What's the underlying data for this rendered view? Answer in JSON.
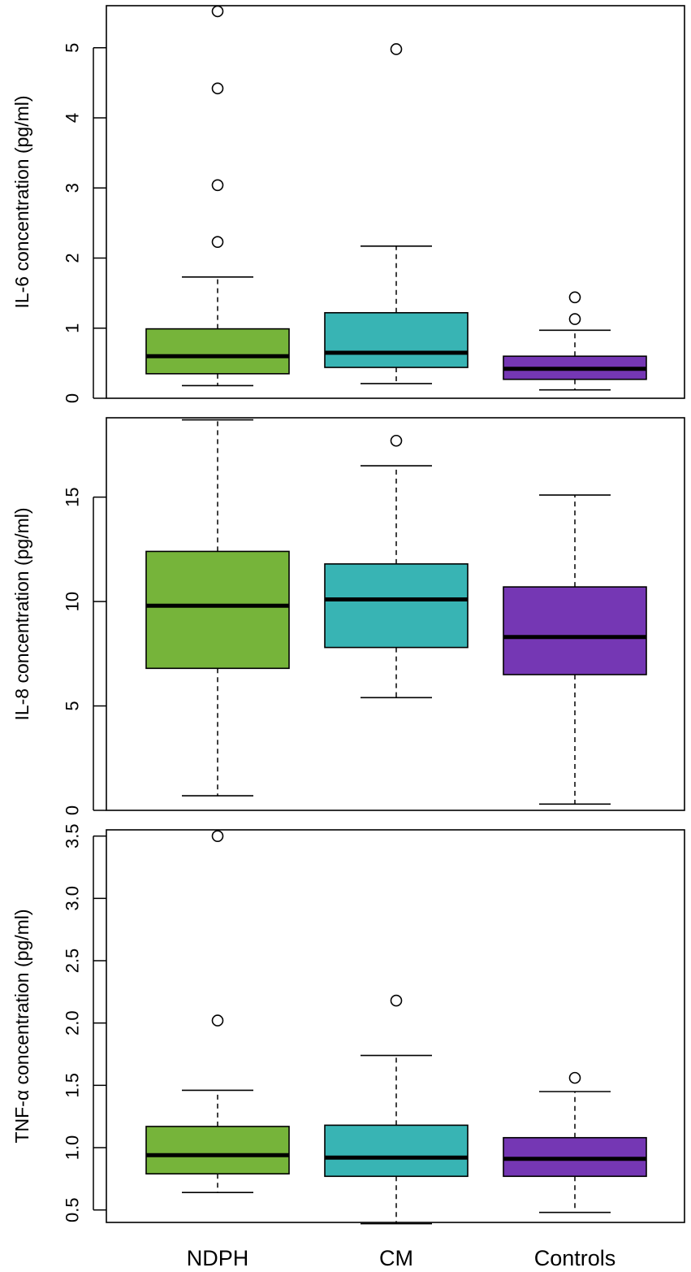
{
  "chart_data": [
    {
      "type": "boxplot",
      "ylabel": "IL-6 concentration (pg/ml)",
      "ylim": [
        0,
        5.6
      ],
      "yticks": [
        0,
        1,
        2,
        3,
        4,
        5
      ],
      "ytick_labels": [
        "0",
        "1",
        "2",
        "3",
        "4",
        "5"
      ],
      "categories": [
        "NDPH",
        "CM",
        "Controls"
      ],
      "boxes": [
        {
          "name": "NDPH",
          "color": "#76b43a",
          "whisker_low": 0.18,
          "q1": 0.35,
          "median": 0.6,
          "q3": 0.99,
          "whisker_high": 1.73,
          "outliers": [
            2.23,
            3.04,
            4.42,
            5.52
          ]
        },
        {
          "name": "CM",
          "color": "#38b4b4",
          "whisker_low": 0.21,
          "q1": 0.44,
          "median": 0.65,
          "q3": 1.22,
          "whisker_high": 2.17,
          "outliers": [
            4.98
          ]
        },
        {
          "name": "Controls",
          "color": "#7537b4",
          "whisker_low": 0.12,
          "q1": 0.27,
          "median": 0.42,
          "q3": 0.6,
          "whisker_high": 0.97,
          "outliers": [
            1.13,
            1.44
          ]
        }
      ]
    },
    {
      "type": "boxplot",
      "ylabel": "IL-8 concentration (pg/ml)",
      "ylim": [
        0,
        18.8
      ],
      "yticks": [
        0,
        5,
        10,
        15
      ],
      "ytick_labels": [
        "0",
        "5",
        "10",
        "15"
      ],
      "categories": [
        "NDPH",
        "CM",
        "Controls"
      ],
      "boxes": [
        {
          "name": "NDPH",
          "color": "#76b43a",
          "whisker_low": 0.7,
          "q1": 6.8,
          "median": 9.8,
          "q3": 12.4,
          "whisker_high": 18.7,
          "outliers": []
        },
        {
          "name": "CM",
          "color": "#38b4b4",
          "whisker_low": 5.4,
          "q1": 7.8,
          "median": 10.1,
          "q3": 11.8,
          "whisker_high": 16.5,
          "outliers": [
            17.7
          ]
        },
        {
          "name": "Controls",
          "color": "#7537b4",
          "whisker_low": 0.3,
          "q1": 6.5,
          "median": 8.3,
          "q3": 10.7,
          "whisker_high": 15.1,
          "outliers": []
        }
      ]
    },
    {
      "type": "boxplot",
      "ylabel": "TNF-α concentration (pg/ml)",
      "ylim": [
        0.4,
        3.55
      ],
      "yticks": [
        0.5,
        1.0,
        1.5,
        2.0,
        2.5,
        3.0,
        3.5
      ],
      "ytick_labels": [
        "0.5",
        "1.0",
        "1.5",
        "2.0",
        "2.5",
        "3.0",
        "3.5"
      ],
      "categories": [
        "NDPH",
        "CM",
        "Controls"
      ],
      "boxes": [
        {
          "name": "NDPH",
          "color": "#76b43a",
          "whisker_low": 0.64,
          "q1": 0.79,
          "median": 0.94,
          "q3": 1.17,
          "whisker_high": 1.46,
          "outliers": [
            2.02,
            3.5
          ]
        },
        {
          "name": "CM",
          "color": "#38b4b4",
          "whisker_low": 0.39,
          "q1": 0.77,
          "median": 0.92,
          "q3": 1.18,
          "whisker_high": 1.74,
          "outliers": [
            2.18
          ]
        },
        {
          "name": "Controls",
          "color": "#7537b4",
          "whisker_low": 0.48,
          "q1": 0.77,
          "median": 0.91,
          "q3": 1.08,
          "whisker_high": 1.45,
          "outliers": [
            1.56
          ]
        }
      ]
    }
  ],
  "x_axis": {
    "category_labels": [
      "NDPH",
      "CM",
      "Controls"
    ]
  }
}
